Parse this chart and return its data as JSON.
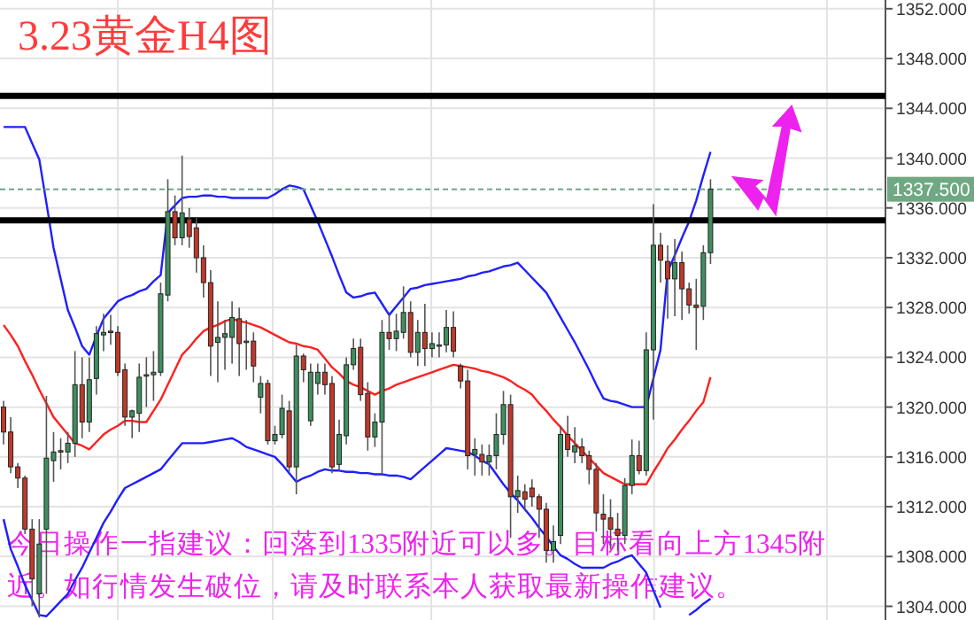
{
  "chart_data": {
    "type": "candlestick",
    "title": "3.23黄金H4图",
    "annotations": [
      "今日操作一指建议：回落到1335附近可以多。目标看向上方1345附近。如行情发生破位，请及时联系本人获取最新操作建议。"
    ],
    "categories": [
      null,
      null,
      null,
      null,
      null,
      null,
      null,
      null,
      null,
      null,
      null,
      null,
      null,
      null,
      null,
      null,
      null,
      null,
      null,
      null,
      null,
      null,
      null,
      null,
      null,
      null,
      null,
      null,
      null,
      null,
      null,
      null,
      null,
      null,
      null,
      null,
      null,
      null,
      null,
      null,
      null,
      null,
      null,
      null,
      null,
      null,
      null,
      null,
      null,
      null,
      null,
      null,
      null,
      null,
      null,
      null,
      null,
      null,
      null,
      null,
      null,
      null,
      null,
      null,
      null,
      null,
      null,
      null,
      null,
      null,
      null,
      null,
      null,
      null,
      null,
      null,
      null,
      null,
      null,
      null,
      null,
      null,
      null,
      null,
      null,
      null,
      null,
      null,
      null,
      null,
      null,
      null,
      null,
      null,
      null,
      null,
      null,
      null,
      null,
      null,
      null,
      null,
      null,
      null,
      null,
      null,
      null,
      null,
      null,
      null,
      null,
      null,
      null,
      null,
      null,
      null,
      null,
      null,
      null,
      null,
      null,
      null,
      null,
      null
    ],
    "ohlc": [
      [
        1320.0,
        1320.5,
        1317.0,
        1318.0
      ],
      [
        1318.0,
        1319.2,
        1314.7,
        1315.2
      ],
      [
        1315.2,
        1315.5,
        1313.5,
        1314.3
      ],
      [
        1314.3,
        1314.5,
        1309.8,
        1310.2
      ],
      [
        1310.2,
        1311.0,
        1304.0,
        1306.2
      ],
      [
        1305.0,
        1311.0,
        1303.1,
        1309.0
      ],
      [
        1310.2,
        1320.9,
        1305.0,
        1315.9
      ],
      [
        1315.7,
        1318.0,
        1314.0,
        1316.4
      ],
      [
        1316.5,
        1317.5,
        1315.0,
        1316.4
      ],
      [
        1316.4,
        1318.0,
        1315.5,
        1317.1
      ],
      [
        1317.1,
        1324.5,
        1316.0,
        1321.8
      ],
      [
        1321.8,
        1324.0,
        1317.5,
        1318.8
      ],
      [
        1318.8,
        1324.0,
        1318.0,
        1322.2
      ],
      [
        1322.3,
        1326.5,
        1321.0,
        1325.9
      ],
      [
        1325.8,
        1327.5,
        1324.5,
        1326.0
      ],
      [
        1326.1,
        1327.4,
        1325.0,
        1326.0
      ],
      [
        1326.0,
        1326.5,
        1322.5,
        1322.8
      ],
      [
        1323.0,
        1323.5,
        1318.5,
        1319.2
      ],
      [
        1319.2,
        1319.8,
        1317.5,
        1319.7
      ],
      [
        1319.5,
        1323.5,
        1318.0,
        1322.4
      ],
      [
        1322.5,
        1324.0,
        1320.0,
        1322.6
      ],
      [
        1322.6,
        1324.5,
        1320.5,
        1322.8
      ],
      [
        1322.8,
        1330.0,
        1322.5,
        1329.1
      ],
      [
        1329.0,
        1338.3,
        1328.5,
        1335.7
      ],
      [
        1335.7,
        1337.0,
        1333.0,
        1333.6
      ],
      [
        1333.6,
        1340.2,
        1333.0,
        1335.6
      ],
      [
        1335.1,
        1336.0,
        1332.8,
        1333.7
      ],
      [
        1334.4,
        1335.2,
        1330.8,
        1332.0
      ],
      [
        1332.0,
        1333.0,
        1328.8,
        1330.0
      ],
      [
        1330.0,
        1331.0,
        1322.5,
        1324.9
      ],
      [
        1325.2,
        1328.5,
        1322.0,
        1325.6
      ],
      [
        1325.6,
        1327.0,
        1323.0,
        1325.9
      ],
      [
        1325.6,
        1328.5,
        1323.5,
        1327.2
      ],
      [
        1327.1,
        1328.0,
        1322.5,
        1325.1
      ],
      [
        1325.2,
        1327.0,
        1323.0,
        1325.3
      ],
      [
        1325.3,
        1326.0,
        1322.0,
        1323.3
      ],
      [
        1320.8,
        1322.5,
        1319.5,
        1321.9
      ],
      [
        1321.9,
        1322.2,
        1317.0,
        1317.3
      ],
      [
        1317.3,
        1318.5,
        1317.0,
        1317.8
      ],
      [
        1317.8,
        1321.0,
        1317.5,
        1319.9
      ],
      [
        1319.7,
        1320.5,
        1314.8,
        1315.2
      ],
      [
        1315.2,
        1325.0,
        1313.0,
        1324.1
      ],
      [
        1324.1,
        1324.3,
        1322.0,
        1323.0
      ],
      [
        1318.9,
        1323.5,
        1318.5,
        1322.8
      ],
      [
        1321.9,
        1323.5,
        1321.0,
        1322.8
      ],
      [
        1322.8,
        1323.5,
        1321.0,
        1321.8
      ],
      [
        1321.9,
        1322.5,
        1314.7,
        1315.2
      ],
      [
        1315.4,
        1319.0,
        1315.0,
        1317.8
      ],
      [
        1317.7,
        1324.0,
        1317.0,
        1323.4
      ],
      [
        1323.4,
        1325.5,
        1323.0,
        1324.7
      ],
      [
        1324.8,
        1325.5,
        1320.5,
        1321.0
      ],
      [
        1321.1,
        1322.0,
        1316.5,
        1317.6
      ],
      [
        1317.6,
        1319.5,
        1316.8,
        1318.8
      ],
      [
        1318.8,
        1327.0,
        1314.5,
        1326.0
      ],
      [
        1326.0,
        1327.5,
        1324.6,
        1325.5
      ],
      [
        1325.5,
        1327.5,
        1324.5,
        1326.1
      ],
      [
        1326.0,
        1329.7,
        1325.5,
        1327.6
      ],
      [
        1327.6,
        1328.5,
        1324.0,
        1324.4
      ],
      [
        1324.4,
        1327.0,
        1323.3,
        1326.0
      ],
      [
        1326.0,
        1328.3,
        1323.3,
        1324.7
      ],
      [
        1324.7,
        1326.0,
        1324.0,
        1325.1
      ],
      [
        1325.0,
        1326.0,
        1324.0,
        1325.0
      ],
      [
        1325.0,
        1327.8,
        1324.4,
        1326.4
      ],
      [
        1326.4,
        1327.7,
        1324.0,
        1324.5
      ],
      [
        1323.3,
        1323.5,
        1321.5,
        1322.1
      ],
      [
        1322.1,
        1323.0,
        1315.0,
        1316.1
      ],
      [
        1316.2,
        1317.5,
        1314.5,
        1316.6
      ],
      [
        1316.2,
        1317.0,
        1314.5,
        1315.6
      ],
      [
        1315.6,
        1317.0,
        1314.5,
        1316.1
      ],
      [
        1316.1,
        1319.5,
        1315.0,
        1317.8
      ],
      [
        1317.8,
        1321.3,
        1317.0,
        1320.2
      ],
      [
        1320.2,
        1321.0,
        1309.5,
        1312.8
      ],
      [
        1312.8,
        1314.5,
        1311.5,
        1313.3
      ],
      [
        1313.2,
        1313.8,
        1311.7,
        1312.6
      ],
      [
        1313.5,
        1314.2,
        1312.0,
        1312.8
      ],
      [
        1312.8,
        1313.0,
        1309.5,
        1311.8
      ],
      [
        1311.8,
        1312.3,
        1307.5,
        1308.5
      ],
      [
        1308.5,
        1310.5,
        1307.5,
        1309.2
      ],
      [
        1309.7,
        1318.5,
        1309.0,
        1317.8
      ],
      [
        1317.8,
        1319.3,
        1316.0,
        1316.6
      ],
      [
        1316.4,
        1318.4,
        1315.5,
        1316.9
      ],
      [
        1316.8,
        1317.5,
        1315.5,
        1316.1
      ],
      [
        1316.1,
        1316.5,
        1313.8,
        1315.0
      ],
      [
        1315.0,
        1315.5,
        1310.0,
        1311.5
      ],
      [
        1311.4,
        1313.0,
        1309.0,
        1311.0
      ],
      [
        1311.1,
        1312.6,
        1308.6,
        1310.2
      ],
      [
        1310.2,
        1311.5,
        1308.5,
        1309.7
      ],
      [
        1309.7,
        1314.3,
        1309.0,
        1313.7
      ],
      [
        1313.7,
        1317.4,
        1313.0,
        1316.1
      ],
      [
        1316.1,
        1317.3,
        1314.6,
        1314.9
      ],
      [
        1314.9,
        1326.0,
        1314.5,
        1324.6
      ],
      [
        1324.6,
        1336.3,
        1319.0,
        1333.0
      ],
      [
        1333.0,
        1334.0,
        1330.0,
        1331.8
      ],
      [
        1331.7,
        1333.0,
        1327.1,
        1330.3
      ],
      [
        1330.3,
        1333.5,
        1327.3,
        1331.6
      ],
      [
        1331.6,
        1332.5,
        1327.0,
        1329.5
      ],
      [
        1329.5,
        1330.0,
        1327.5,
        1328.2
      ],
      [
        1328.2,
        1330.3,
        1324.6,
        1328.0
      ],
      [
        1328.1,
        1333.0,
        1327.0,
        1332.4
      ],
      [
        1332.4,
        1338.3,
        1331.5,
        1337.5
      ],
      null,
      null,
      null,
      null,
      null,
      null,
      null,
      null,
      null,
      null,
      null,
      null,
      null,
      null,
      null,
      null,
      null,
      null,
      null,
      null,
      null,
      null,
      null,
      null
    ],
    "series": [
      {
        "type": "line",
        "color": "#1f1fff",
        "values": [
          1342.5,
          1342.5,
          1342.5,
          1342.5,
          1341.2,
          1339.9,
          1336.4,
          1332.8,
          1330.3,
          1327.8,
          1326.4,
          1324.9,
          1324.2,
          1325.7,
          1327.1,
          1327.8,
          1328.5,
          1328.8,
          1329.0,
          1329.3,
          1329.5,
          1330.1,
          1330.6,
          1335.6,
          1336.2,
          1336.8,
          1336.9,
          1336.9,
          1337.0,
          1337.0,
          1336.9,
          1336.9,
          1336.8,
          1336.8,
          1336.8,
          1336.8,
          1336.8,
          1336.8,
          1337.1,
          1337.5,
          1337.8,
          1337.7,
          1337.5,
          1336.2,
          1334.9,
          1333.5,
          1332.1,
          1330.6,
          1329.2,
          1328.8,
          1328.9,
          1329.1,
          1329.2,
          1328.3,
          1327.4,
          1328.1,
          1328.8,
          1329.5,
          1329.6,
          1329.8,
          1329.9,
          1330.0,
          1330.1,
          1330.2,
          1330.3,
          1330.5,
          1330.6,
          1330.8,
          1330.9,
          1331.1,
          1331.3,
          1331.4,
          1331.6,
          1331.0,
          1330.4,
          1329.8,
          1329.2,
          1328.2,
          1327.2,
          1326.2,
          1325.2,
          1324.1,
          1323.0,
          1321.8,
          1320.7,
          1320.5,
          1320.4,
          1320.2,
          1320.0,
          1320.0,
          1320.0,
          1322.3,
          1324.6,
          1330.9,
          1332.2,
          1333.6,
          1334.9,
          1336.6,
          1338.6,
          1340.5,
          null,
          null,
          null,
          null,
          null,
          null,
          null,
          null,
          null,
          null,
          null,
          null,
          null,
          null,
          null,
          null,
          null,
          null,
          null,
          null,
          null,
          null,
          null,
          null
        ]
      },
      {
        "type": "line",
        "color": "#ff2020",
        "values": [
          1326.6,
          1325.8,
          1324.9,
          1323.7,
          1322.6,
          1321.4,
          1320.3,
          1319.2,
          1318.5,
          1317.8,
          1317.1,
          1316.9,
          1316.6,
          1317.2,
          1317.8,
          1318.2,
          1318.5,
          1318.9,
          1318.9,
          1318.8,
          1318.8,
          1319.7,
          1320.6,
          1321.8,
          1323.0,
          1324.2,
          1324.8,
          1325.5,
          1326.1,
          1326.4,
          1326.6,
          1326.9,
          1327.1,
          1326.9,
          1326.8,
          1326.6,
          1326.4,
          1326.1,
          1325.8,
          1325.5,
          1325.2,
          1325.1,
          1324.9,
          1324.8,
          1324.6,
          1323.9,
          1323.2,
          1322.7,
          1322.1,
          1321.8,
          1321.6,
          1321.3,
          1321.0,
          1321.3,
          1321.5,
          1321.8,
          1322.0,
          1322.2,
          1322.4,
          1322.6,
          1322.8,
          1323.0,
          1323.2,
          1323.4,
          1323.3,
          1323.2,
          1323.1,
          1322.9,
          1322.8,
          1322.6,
          1322.4,
          1322.1,
          1321.7,
          1321.4,
          1321.0,
          1320.3,
          1319.7,
          1319.0,
          1318.4,
          1317.7,
          1317.1,
          1316.5,
          1315.9,
          1315.3,
          1314.7,
          1314.4,
          1314.1,
          1313.8,
          1313.8,
          1313.8,
          1313.8,
          1314.8,
          1315.7,
          1316.7,
          1317.4,
          1318.2,
          1318.9,
          1319.7,
          1320.4,
          1322.4,
          null,
          null,
          null,
          null,
          null,
          null,
          null,
          null,
          null,
          null,
          null,
          null,
          null,
          null,
          null,
          null,
          null,
          null,
          null,
          null,
          null,
          null,
          null,
          null
        ]
      },
      {
        "type": "line",
        "color": "#1f1fff",
        "values": [
          1311.0,
          1308.6,
          1307.2,
          1305.7,
          1304.5,
          1303.3,
          1303.2,
          1303.8,
          1304.4,
          1305.0,
          1306.1,
          1307.1,
          1308.3,
          1309.5,
          1310.7,
          1311.6,
          1312.6,
          1313.5,
          1313.8,
          1314.1,
          1314.4,
          1314.7,
          1315.0,
          1315.7,
          1316.4,
          1317.1,
          1317.1,
          1317.1,
          1317.1,
          1317.2,
          1317.3,
          1317.4,
          1317.5,
          1317.2,
          1316.8,
          1316.6,
          1316.4,
          1316.2,
          1316.0,
          1315.4,
          1314.7,
          1314.0,
          1314.3,
          1314.5,
          1314.8,
          1315.0,
          1314.9,
          1314.9,
          1314.8,
          1314.8,
          1314.7,
          1314.7,
          1314.6,
          1314.6,
          1314.5,
          1314.5,
          1314.4,
          1314.2,
          1314.7,
          1315.2,
          1315.7,
          1316.2,
          1316.7,
          1316.6,
          1316.5,
          1316.4,
          1316.1,
          1315.7,
          1315.4,
          1314.6,
          1313.8,
          1313.1,
          1312.5,
          1311.8,
          1311.1,
          1310.3,
          1309.6,
          1308.8,
          1308.1,
          1307.8,
          1307.4,
          1307.1,
          1307.1,
          1307.1,
          1307.1,
          1307.4,
          1307.6,
          1307.9,
          1308.1,
          1307.4,
          1306.7,
          1305.3,
          1303.9,
          null,
          null,
          null,
          1303.3,
          1303.7,
          1304.2,
          1304.6,
          null,
          null,
          null,
          null,
          null,
          null,
          null,
          null,
          null,
          null,
          null,
          null,
          null,
          null,
          null,
          null,
          null,
          null,
          null,
          null,
          null,
          null,
          null,
          null
        ]
      }
    ],
    "ylim": [
      1302.9,
      1352.7
    ],
    "yticks": [
      {
        "value": 1304,
        "label": "1304.000"
      },
      {
        "value": 1308,
        "label": "1308.000"
      },
      {
        "value": 1312,
        "label": "1312.000"
      },
      {
        "value": 1316,
        "label": "1316.000"
      },
      {
        "value": 1320,
        "label": "1320.000"
      },
      {
        "value": 1324,
        "label": "1324.000"
      },
      {
        "value": 1328,
        "label": "1328.000"
      },
      {
        "value": 1332,
        "label": "1332.000"
      },
      {
        "value": 1336,
        "label": "1336.000"
      },
      {
        "value": 1340,
        "label": "1340.000"
      },
      {
        "value": 1344,
        "label": "1344.000"
      },
      {
        "value": 1348,
        "label": "1348.000"
      },
      {
        "value": 1352,
        "label": "1352.000"
      }
    ],
    "ref_lines": [
      {
        "axis": "y",
        "value": 1345,
        "color": "#000000"
      },
      {
        "axis": "y",
        "value": 1335,
        "color": "#000000"
      },
      {
        "axis": "y",
        "value": 1337.5,
        "label": "1337.500",
        "color": "#6fa882",
        "line_style": "dashed"
      }
    ],
    "grid": "y",
    "tick_labels": "y"
  }
}
